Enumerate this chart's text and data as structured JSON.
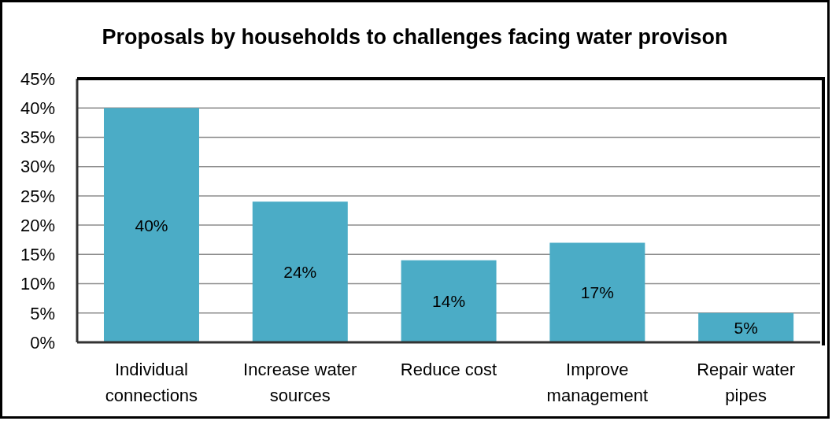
{
  "chart_data": {
    "type": "bar",
    "title": "Proposals by households to challenges facing water provison",
    "categories": [
      "Individual connections",
      "Increase water sources",
      "Reduce cost",
      "Improve management",
      "Repair water pipes"
    ],
    "values": [
      40,
      24,
      14,
      17,
      5
    ],
    "value_labels": [
      "40%",
      "24%",
      "14%",
      "17%",
      "5%"
    ],
    "color": "#4bacc6",
    "ylim": [
      0,
      45
    ],
    "yticks": [
      {
        "value": 0,
        "label": "0%"
      },
      {
        "value": 5,
        "label": "5%"
      },
      {
        "value": 10,
        "label": "10%"
      },
      {
        "value": 15,
        "label": "15%"
      },
      {
        "value": 20,
        "label": "20%"
      },
      {
        "value": 25,
        "label": "25%"
      },
      {
        "value": 30,
        "label": "30%"
      },
      {
        "value": 35,
        "label": "35%"
      },
      {
        "value": 40,
        "label": "40%"
      },
      {
        "value": 45,
        "label": "45%"
      }
    ],
    "grid": "y"
  }
}
